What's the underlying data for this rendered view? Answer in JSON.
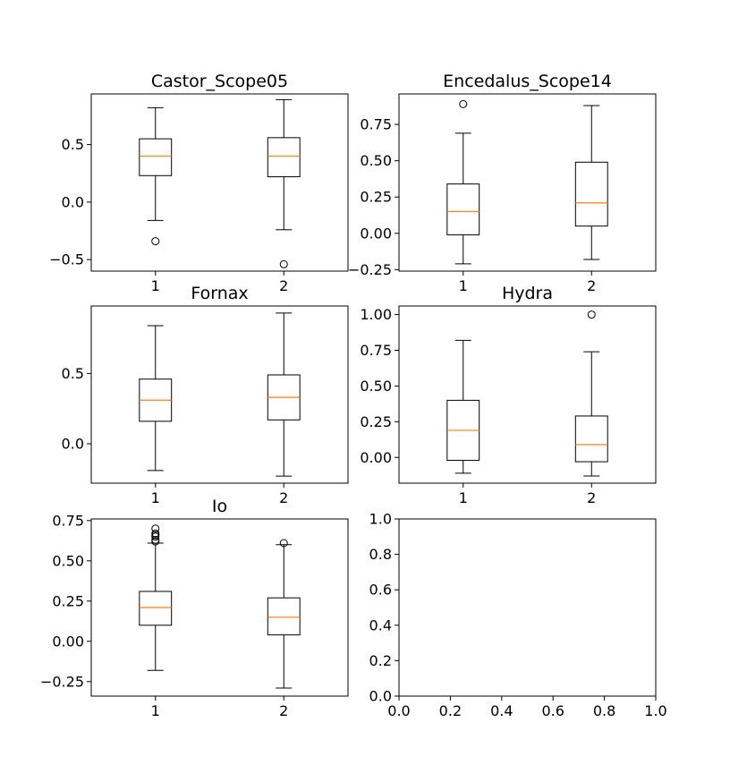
{
  "figure": {
    "background": "#ffffff",
    "median_color": "#ff7f0e",
    "box_color": "#000000"
  },
  "chart_data": [
    {
      "type": "box",
      "title": "Castor_Scope05",
      "categories": [
        "1",
        "2"
      ],
      "ylim": [
        -0.6,
        0.94
      ],
      "yticks": [
        -0.5,
        0.0,
        0.5
      ],
      "ytick_labels": [
        "−0.5",
        "0.0",
        "0.5"
      ],
      "boxes": [
        {
          "whislo": -0.16,
          "q1": 0.23,
          "med": 0.4,
          "q3": 0.55,
          "whishi": 0.82,
          "fliers": [
            -0.34
          ]
        },
        {
          "whislo": -0.24,
          "q1": 0.22,
          "med": 0.4,
          "q3": 0.56,
          "whishi": 0.89,
          "fliers": [
            -0.54
          ]
        }
      ]
    },
    {
      "type": "box",
      "title": "Encedalus_Scope14",
      "categories": [
        "1",
        "2"
      ],
      "ylim": [
        -0.26,
        0.96
      ],
      "yticks": [
        -0.25,
        0.0,
        0.25,
        0.5,
        0.75
      ],
      "ytick_labels": [
        "−0.25",
        "0.00",
        "0.25",
        "0.50",
        "0.75"
      ],
      "boxes": [
        {
          "whislo": -0.21,
          "q1": -0.01,
          "med": 0.15,
          "q3": 0.34,
          "whishi": 0.69,
          "fliers": [
            0.89
          ]
        },
        {
          "whislo": -0.18,
          "q1": 0.05,
          "med": 0.21,
          "q3": 0.49,
          "whishi": 0.88,
          "fliers": []
        }
      ]
    },
    {
      "type": "box",
      "title": "Fornax",
      "categories": [
        "1",
        "2"
      ],
      "ylim": [
        -0.28,
        0.98
      ],
      "yticks": [
        0.0,
        0.5
      ],
      "ytick_labels": [
        "0.0",
        "0.5"
      ],
      "boxes": [
        {
          "whislo": -0.19,
          "q1": 0.16,
          "med": 0.31,
          "q3": 0.46,
          "whishi": 0.84,
          "fliers": []
        },
        {
          "whislo": -0.23,
          "q1": 0.17,
          "med": 0.33,
          "q3": 0.49,
          "whishi": 0.93,
          "fliers": []
        }
      ]
    },
    {
      "type": "box",
      "title": "Hydra",
      "categories": [
        "1",
        "2"
      ],
      "ylim": [
        -0.18,
        1.06
      ],
      "yticks": [
        0.0,
        0.25,
        0.5,
        0.75,
        1.0
      ],
      "ytick_labels": [
        "0.00",
        "0.25",
        "0.50",
        "0.75",
        "1.00"
      ],
      "boxes": [
        {
          "whislo": -0.11,
          "q1": -0.02,
          "med": 0.19,
          "q3": 0.4,
          "whishi": 0.82,
          "fliers": []
        },
        {
          "whislo": -0.13,
          "q1": -0.03,
          "med": 0.09,
          "q3": 0.29,
          "whishi": 0.74,
          "fliers": [
            1.0
          ]
        }
      ]
    },
    {
      "type": "box",
      "title": "Io",
      "categories": [
        "1",
        "2"
      ],
      "ylim": [
        -0.34,
        0.76
      ],
      "yticks": [
        -0.25,
        0.0,
        0.25,
        0.5,
        0.75
      ],
      "ytick_labels": [
        "−0.25",
        "0.00",
        "0.25",
        "0.50",
        "0.75"
      ],
      "boxes": [
        {
          "whislo": -0.18,
          "q1": 0.1,
          "med": 0.21,
          "q3": 0.31,
          "whishi": 0.61,
          "fliers": [
            0.62,
            0.63,
            0.65,
            0.66,
            0.67,
            0.7
          ]
        },
        {
          "whislo": -0.29,
          "q1": 0.04,
          "med": 0.15,
          "q3": 0.27,
          "whishi": 0.6,
          "fliers": [
            0.61
          ]
        }
      ]
    },
    {
      "type": "empty",
      "title": "",
      "xlim": [
        0,
        1
      ],
      "ylim": [
        0,
        1
      ],
      "xticks": [
        0.0,
        0.2,
        0.4,
        0.6,
        0.8,
        1.0
      ],
      "xtick_labels": [
        "0.0",
        "0.2",
        "0.4",
        "0.6",
        "0.8",
        "1.0"
      ],
      "yticks": [
        0.0,
        0.2,
        0.4,
        0.6,
        0.8,
        1.0
      ],
      "ytick_labels": [
        "0.0",
        "0.2",
        "0.4",
        "0.6",
        "0.8",
        "1.0"
      ]
    }
  ]
}
